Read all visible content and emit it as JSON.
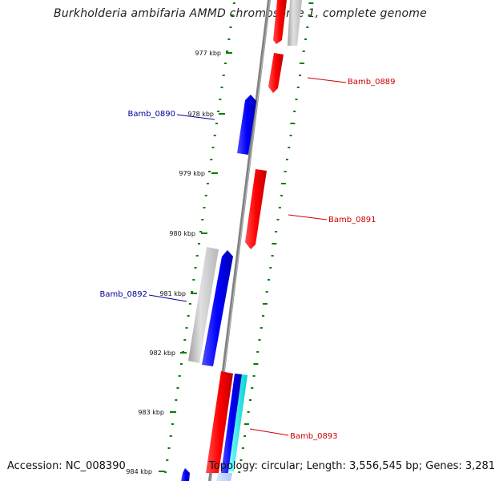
{
  "title": "Burkholderia ambifaria AMMD chromosome 1, complete genome",
  "footer": {
    "accession": "Accession: NC_008390",
    "summary": "Topology: circular; Length: 3,556,545 bp; Genes: 3,281"
  },
  "colors": {
    "forward_gene": "#ff0000",
    "reverse_gene": "#0000ff",
    "gray_feature": "#c0c0c0",
    "cyan_feature": "#00ffff",
    "backbone": "#808080",
    "ticks": "#008000",
    "forward_label": "#cc0000",
    "reverse_label": "#00009a"
  },
  "axis_ticks": [
    {
      "label": "977 kbp"
    },
    {
      "label": "978 kbp"
    },
    {
      "label": "979 kbp"
    },
    {
      "label": "980 kbp"
    },
    {
      "label": "981 kbp"
    },
    {
      "label": "982 kbp"
    },
    {
      "label": "983 kbp"
    },
    {
      "label": "984 kbp"
    }
  ],
  "gene_labels": [
    {
      "name": "Bamb_0889",
      "strand": "forward"
    },
    {
      "name": "Bamb_0890",
      "strand": "reverse"
    },
    {
      "name": "Bamb_0891",
      "strand": "forward"
    },
    {
      "name": "Bamb_0892",
      "strand": "reverse"
    },
    {
      "name": "Bamb_0893",
      "strand": "forward"
    }
  ]
}
